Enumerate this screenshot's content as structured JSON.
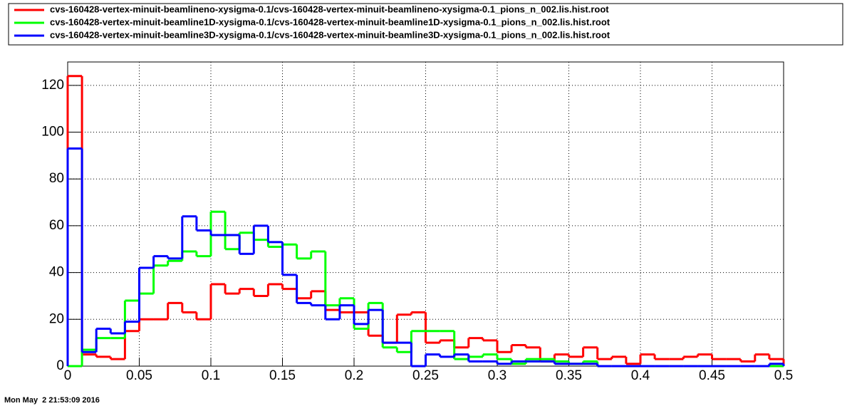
{
  "chart_data": {
    "type": "histogram",
    "bins": [
      0,
      0.01,
      0.02,
      0.03,
      0.04,
      0.05,
      0.06,
      0.07,
      0.08,
      0.09,
      0.1,
      0.11,
      0.12,
      0.13,
      0.14,
      0.15,
      0.16,
      0.17,
      0.18,
      0.19,
      0.2,
      0.21,
      0.22,
      0.23,
      0.24,
      0.25,
      0.26,
      0.27,
      0.28,
      0.29,
      0.3,
      0.31,
      0.32,
      0.33,
      0.34,
      0.35,
      0.36,
      0.37,
      0.38,
      0.39,
      0.4,
      0.41,
      0.42,
      0.43,
      0.44,
      0.45,
      0.46,
      0.47,
      0.48,
      0.49,
      0.5
    ],
    "series": [
      {
        "name": "cvs-160428-vertex-minuit-beamlineno-xysigma-0.1/cvs-160428-vertex-minuit-beamlineno-xysigma-0.1_pions_n_002.lis.hist.root",
        "color": "#ff0000",
        "values": [
          124,
          5,
          4,
          3,
          15,
          20,
          20,
          27,
          23,
          20,
          35,
          31,
          33,
          30,
          35,
          33,
          29,
          32,
          24,
          23,
          23,
          13,
          10,
          22,
          23,
          10,
          11,
          8,
          12,
          11,
          6,
          9,
          8,
          2,
          5,
          4,
          8,
          3,
          4,
          1,
          5,
          3,
          3,
          4,
          5,
          3,
          3,
          2,
          5,
          3
        ]
      },
      {
        "name": "cvs-160428-vertex-minuit-beamline1D-xysigma-0.1/cvs-160428-vertex-minuit-beamline1D-xysigma-0.1_pions_n_002.lis.hist.root",
        "color": "#00ff00",
        "values": [
          0,
          7,
          12,
          12,
          28,
          31,
          43,
          45,
          49,
          47,
          66,
          50,
          57,
          54,
          51,
          52,
          46,
          49,
          26,
          29,
          16,
          27,
          8,
          6,
          15,
          15,
          15,
          3,
          4,
          5,
          3,
          1,
          3,
          3,
          2,
          1,
          2,
          0,
          0,
          0,
          0,
          0,
          0,
          0,
          0,
          0,
          0,
          0,
          0,
          0
        ]
      },
      {
        "name": "cvs-160428-vertex-minuit-beamline3D-xysigma-0.1/cvs-160428-vertex-minuit-beamline3D-xysigma-0.1_pions_n_002.lis.hist.root",
        "color": "#0000ff",
        "values": [
          93,
          6,
          16,
          14,
          19,
          42,
          47,
          46,
          64,
          58,
          56,
          56,
          48,
          60,
          53,
          39,
          27,
          26,
          20,
          26,
          18,
          24,
          10,
          10,
          0,
          5,
          4,
          5,
          2,
          2,
          1,
          2,
          2,
          2,
          1,
          1,
          1,
          0,
          0,
          0,
          0,
          0,
          0,
          0,
          0,
          0,
          0,
          0,
          0,
          1
        ]
      }
    ],
    "xlim": [
      0,
      0.5
    ],
    "ylim": [
      0,
      130
    ],
    "xticks": [
      0,
      0.05,
      0.1,
      0.15,
      0.2,
      0.25,
      0.3,
      0.35,
      0.4,
      0.45,
      0.5
    ],
    "yticks": [
      0,
      20,
      40,
      60,
      80,
      100,
      120
    ],
    "grid": true,
    "date": "Mon May  2 21:53:09 2016"
  }
}
